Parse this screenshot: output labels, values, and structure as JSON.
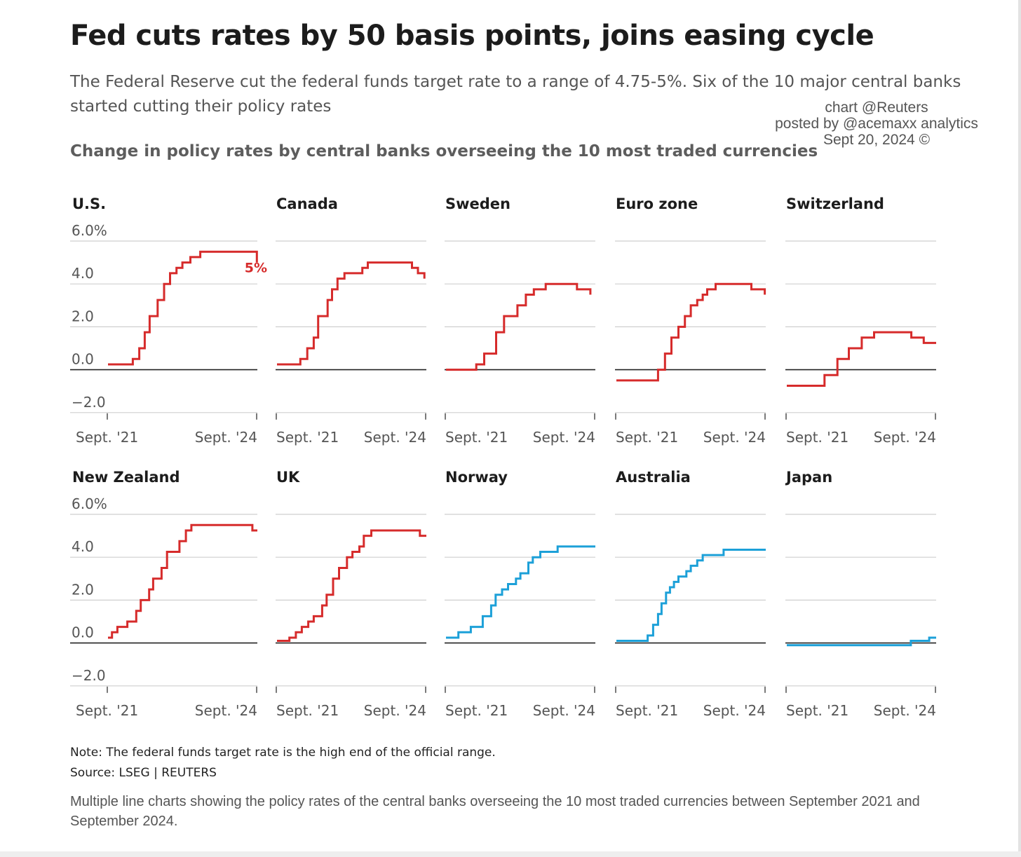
{
  "header": {
    "title": "Fed cuts rates by 50 basis points, joins easing cycle",
    "subtitle_line1": "The Federal Reserve cut the federal funds target rate to a range of 4.75-5%. Six of the 10 major central banks",
    "subtitle_line2": "started cutting their policy rates",
    "credit_line1": "chart @Reuters",
    "credit_line2": "posted by @acemaxx analytics",
    "credit_line3": "Sept 20, 2024 ©"
  },
  "footer": {
    "note": "Note: The federal funds target rate is the high end of the official range.",
    "source": "Source: LSEG | REUTERS",
    "caption": "Multiple line charts showing the policy rates of the central banks overseeing the 10 most traded currencies between September 2021 and September 2024."
  },
  "colors": {
    "cutting": "#d62b2b",
    "not_cutting": "#1ca0d8",
    "grid": "#cfcfcf",
    "zero_line": "#222222",
    "tick_text": "#555555"
  },
  "chart_data": {
    "type": "line",
    "title": "Change in policy rates by central banks overseeing the 10 most traded currencies",
    "y_ticks": [
      "6.0%",
      "4.0",
      "2.0",
      "0.0",
      "−2.0"
    ],
    "y_tick_values": [
      6,
      4,
      2,
      0,
      -2
    ],
    "ylim": [
      -2,
      6
    ],
    "x_ticks": [
      "Sept. '21",
      "Sept. '24"
    ],
    "xlim": [
      2021.71,
      2024.72
    ],
    "grid": true,
    "panels": [
      {
        "name": "U.S.",
        "color": "cutting",
        "annotation": "5%",
        "step_x": [
          2021.71,
          2022.21,
          2022.34,
          2022.45,
          2022.55,
          2022.71,
          2022.84,
          2022.96,
          2023.09,
          2023.21,
          2023.37,
          2023.57,
          2024.71
        ],
        "step_y": [
          0.25,
          0.5,
          1.0,
          1.75,
          2.5,
          3.25,
          4.0,
          4.5,
          4.75,
          5.0,
          5.25,
          5.5,
          5.0
        ]
      },
      {
        "name": "Canada",
        "color": "cutting",
        "step_x": [
          2021.71,
          2022.18,
          2022.32,
          2022.45,
          2022.54,
          2022.73,
          2022.82,
          2022.93,
          2023.07,
          2023.43,
          2023.54,
          2024.43,
          2024.55,
          2024.68
        ],
        "step_y": [
          0.25,
          0.5,
          1.0,
          1.5,
          2.5,
          3.25,
          3.75,
          4.25,
          4.5,
          4.75,
          5.0,
          4.75,
          4.5,
          4.25
        ]
      },
      {
        "name": "Sweden",
        "color": "cutting",
        "step_x": [
          2021.71,
          2022.32,
          2022.48,
          2022.72,
          2022.88,
          2023.15,
          2023.32,
          2023.48,
          2023.72,
          2024.35,
          2024.62
        ],
        "step_y": [
          0.0,
          0.25,
          0.75,
          1.75,
          2.5,
          3.0,
          3.5,
          3.75,
          4.0,
          3.75,
          3.5
        ]
      },
      {
        "name": "Euro zone",
        "color": "cutting",
        "step_x": [
          2021.71,
          2022.55,
          2022.69,
          2022.82,
          2022.96,
          2023.09,
          2023.21,
          2023.34,
          2023.45,
          2023.54,
          2023.71,
          2024.43,
          2024.7
        ],
        "step_y": [
          -0.5,
          0.0,
          0.75,
          1.5,
          2.0,
          2.5,
          3.0,
          3.25,
          3.5,
          3.75,
          4.0,
          3.75,
          3.5
        ]
      },
      {
        "name": "Switzerland",
        "color": "cutting",
        "step_x": [
          2021.71,
          2022.47,
          2022.73,
          2022.96,
          2023.22,
          2023.47,
          2024.22,
          2024.47,
          2024.72
        ],
        "step_y": [
          -0.75,
          -0.25,
          0.5,
          1.0,
          1.5,
          1.75,
          1.5,
          1.25,
          1.25
        ]
      },
      {
        "name": "New Zealand",
        "color": "cutting",
        "step_x": [
          2021.71,
          2021.79,
          2021.9,
          2022.1,
          2022.28,
          2022.37,
          2022.54,
          2022.62,
          2022.79,
          2022.9,
          2023.15,
          2023.28,
          2023.39,
          2024.62,
          2024.72
        ],
        "step_y": [
          0.25,
          0.5,
          0.75,
          1.0,
          1.5,
          2.0,
          2.5,
          3.0,
          3.5,
          4.25,
          4.75,
          5.25,
          5.5,
          5.25,
          5.25
        ]
      },
      {
        "name": "UK",
        "color": "cutting",
        "step_x": [
          2021.71,
          2021.96,
          2022.09,
          2022.21,
          2022.34,
          2022.45,
          2022.62,
          2022.71,
          2022.84,
          2022.96,
          2023.12,
          2023.23,
          2023.37,
          2023.46,
          2023.61,
          2024.59,
          2024.72
        ],
        "step_y": [
          0.1,
          0.25,
          0.5,
          0.75,
          1.0,
          1.25,
          1.75,
          2.25,
          3.0,
          3.5,
          4.0,
          4.25,
          4.5,
          5.0,
          5.25,
          5.0,
          5.0
        ]
      },
      {
        "name": "Norway",
        "color": "not_cutting",
        "step_x": [
          2021.71,
          2021.96,
          2022.21,
          2022.45,
          2022.62,
          2022.71,
          2022.84,
          2022.96,
          2023.12,
          2023.21,
          2023.37,
          2023.46,
          2023.61,
          2023.96,
          2024.72
        ],
        "step_y": [
          0.25,
          0.5,
          0.75,
          1.25,
          1.75,
          2.25,
          2.5,
          2.75,
          3.0,
          3.25,
          3.75,
          4.0,
          4.25,
          4.5,
          4.5
        ]
      },
      {
        "name": "Australia",
        "color": "not_cutting",
        "step_x": [
          2021.71,
          2022.34,
          2022.45,
          2022.55,
          2022.62,
          2022.71,
          2022.79,
          2022.87,
          2022.96,
          2023.12,
          2023.21,
          2023.34,
          2023.45,
          2023.87,
          2024.72
        ],
        "step_y": [
          0.1,
          0.35,
          0.85,
          1.35,
          1.85,
          2.35,
          2.6,
          2.85,
          3.1,
          3.35,
          3.6,
          3.85,
          4.1,
          4.35,
          4.35
        ]
      },
      {
        "name": "Japan",
        "color": "not_cutting",
        "step_x": [
          2021.71,
          2024.21,
          2024.58,
          2024.72
        ],
        "step_y": [
          -0.1,
          0.1,
          0.25,
          0.25
        ]
      }
    ]
  }
}
